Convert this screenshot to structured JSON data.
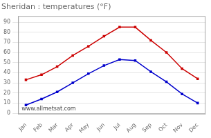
{
  "chart_data": {
    "type": "line",
    "title": "Sheridan : temperatures (°F)",
    "categories": [
      "Jan",
      "Feb",
      "Mar",
      "Apr",
      "May",
      "Jun",
      "Jul",
      "Aug",
      "Sep",
      "Oct",
      "Nov",
      "Dec"
    ],
    "series": [
      {
        "color": "#cc0000",
        "marker": "square",
        "values": [
          33,
          38,
          46,
          57,
          66,
          76,
          85,
          85,
          72,
          60,
          44,
          34
        ]
      },
      {
        "color": "#0000cc",
        "marker": "square",
        "values": [
          8,
          14,
          21,
          30,
          39,
          47,
          53,
          52,
          41,
          31,
          19,
          10
        ]
      }
    ],
    "ylim": [
      -1,
      96
    ],
    "yticks": [
      0,
      10,
      20,
      30,
      40,
      50,
      60,
      70,
      80,
      90
    ],
    "grid": "y",
    "annotation": "www.allmetsat.com"
  }
}
